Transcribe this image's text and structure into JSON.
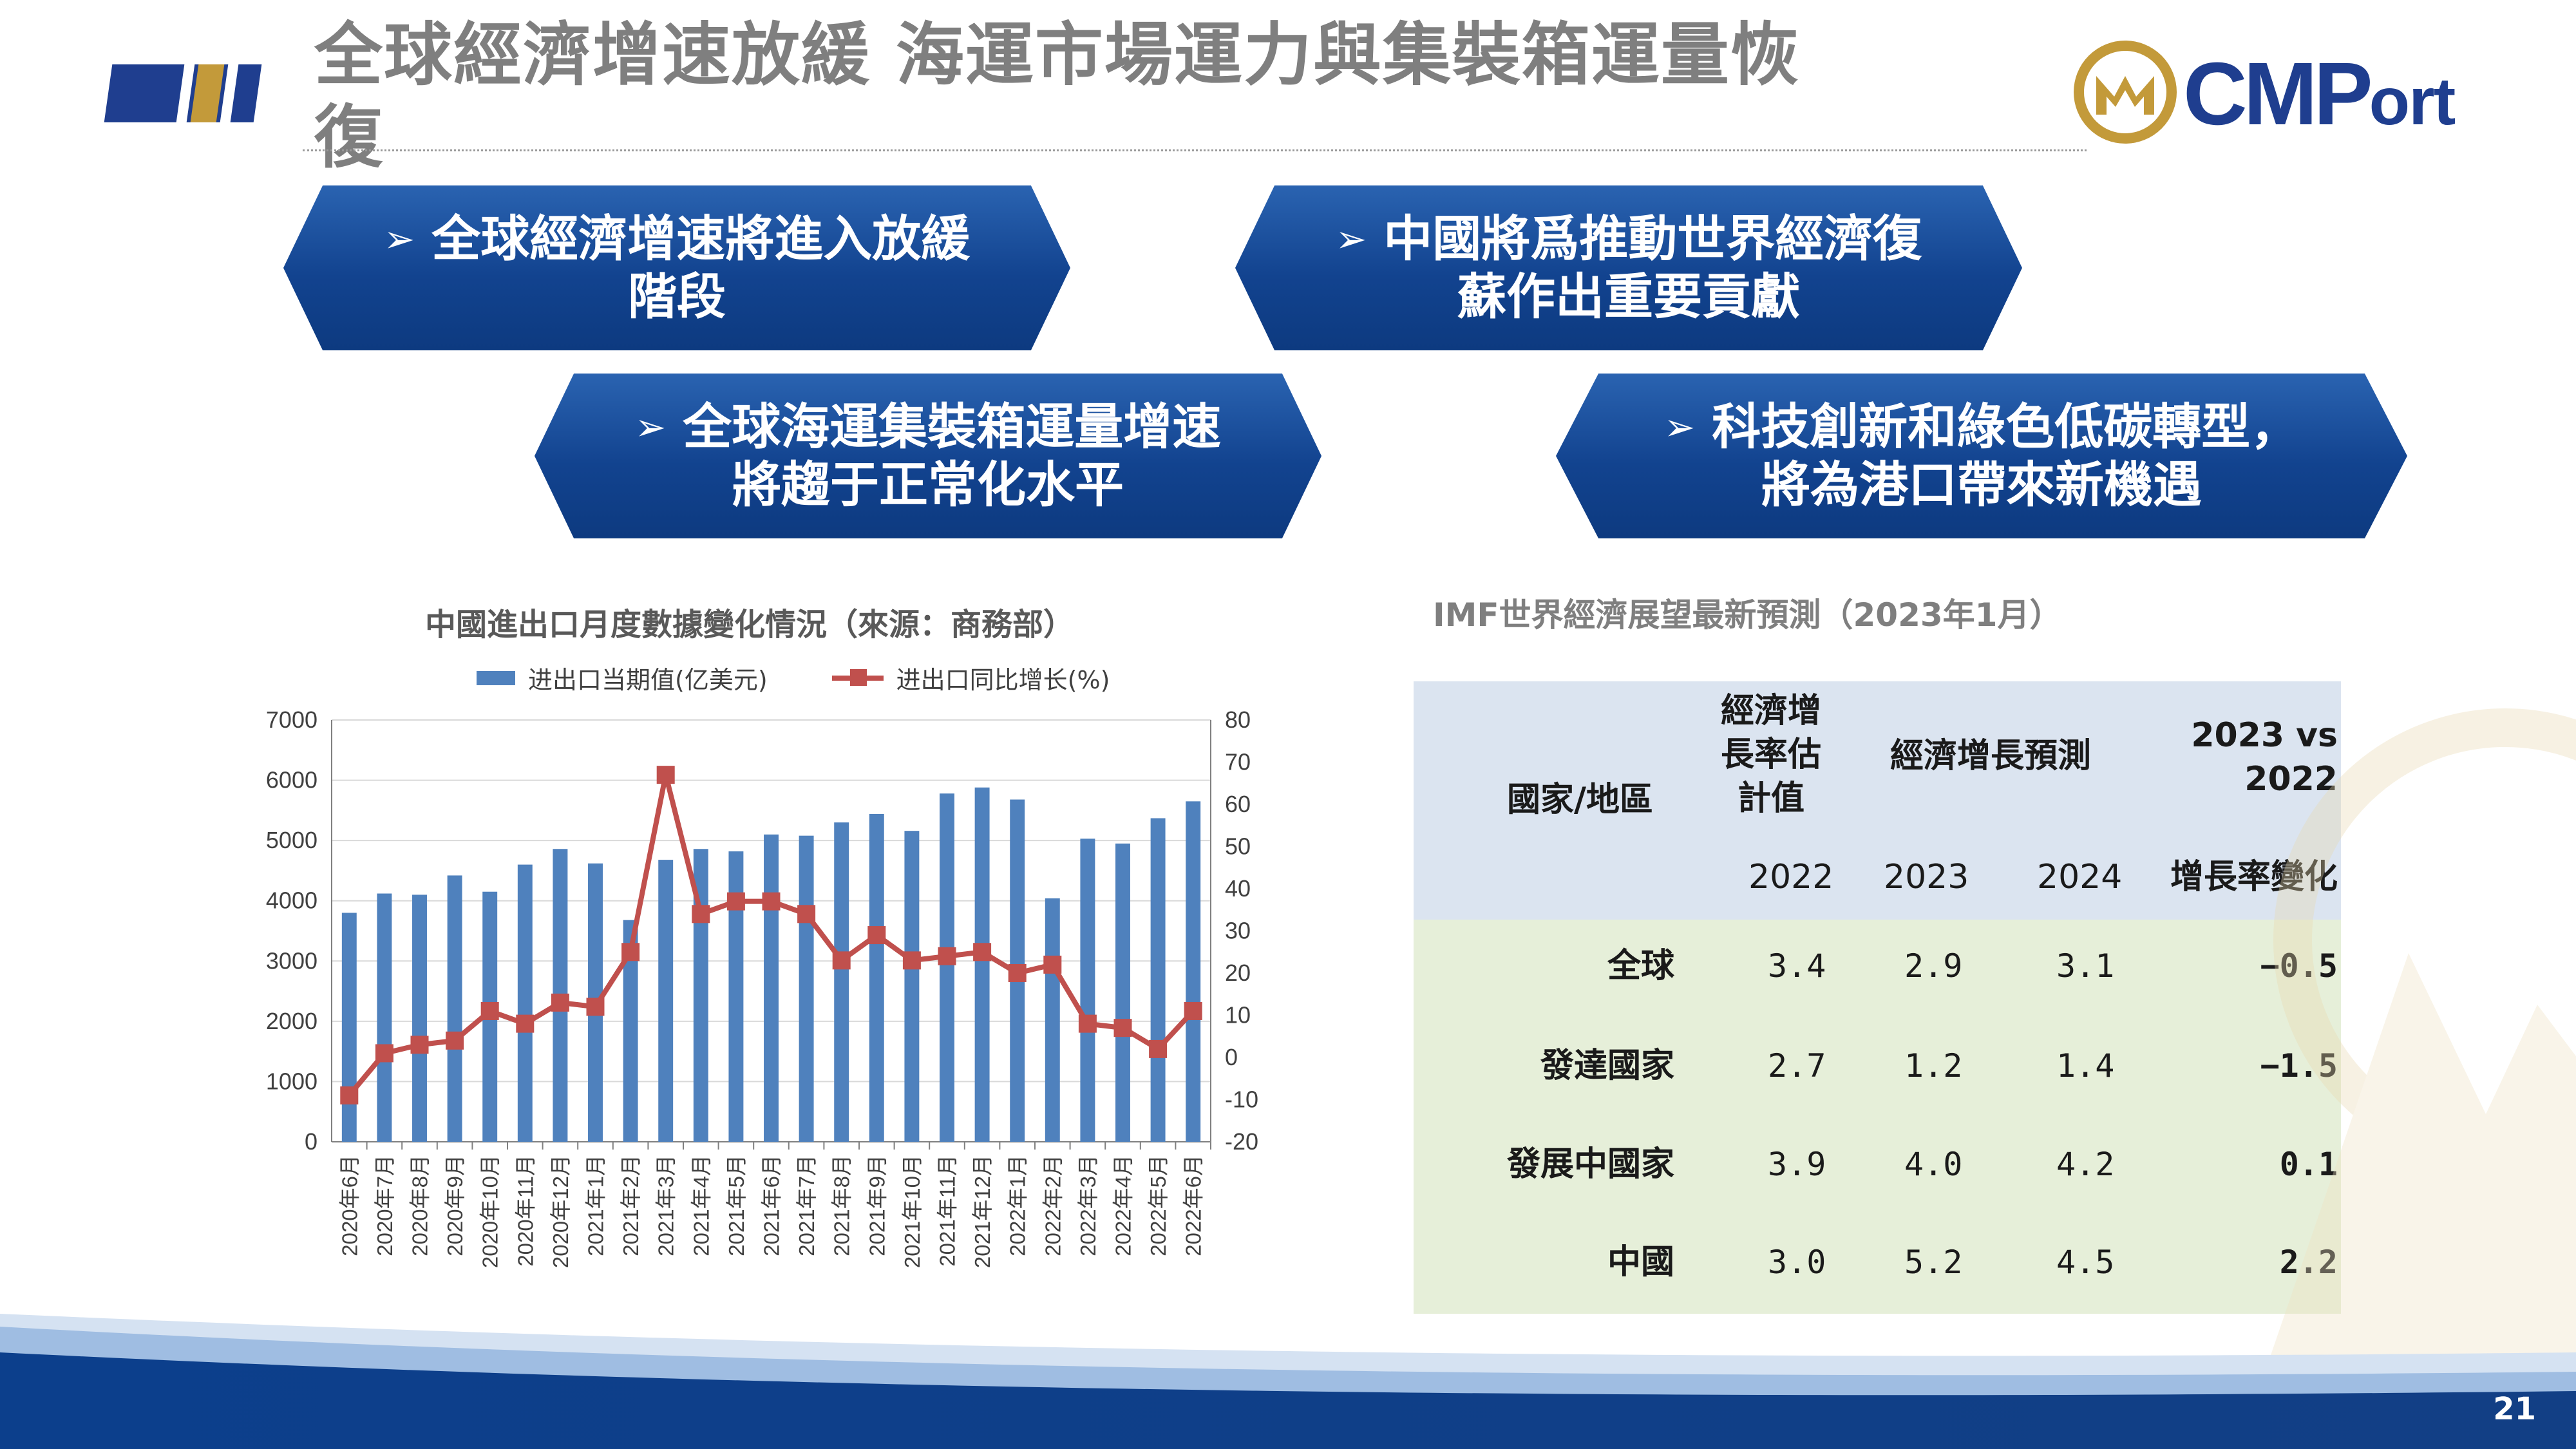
{
  "header": {
    "title_line1": "全球經濟增速放緩 海運市場運力與集裝箱運量恢",
    "title_line2": "復",
    "bar_colors": [
      "#1f3e8f",
      "#1f3e8f",
      "#c39a3a",
      "#1f3e8f"
    ]
  },
  "logo": {
    "text_main": "CMP",
    "text_small": "ort",
    "icon": "cmport-logo-icon",
    "color": "#1f3e8f",
    "gold": "#c39a3a"
  },
  "banners": [
    {
      "line1": "全球經濟增速將進入放緩",
      "line2": "階段",
      "icon": "arrow-bullet-icon"
    },
    {
      "line1": "中國將爲推動世界經濟復",
      "line2": "蘇作出重要貢獻",
      "icon": "arrow-bullet-icon"
    },
    {
      "line1": "全球海運集裝箱運量增速",
      "line2": "將趨于正常化水平",
      "icon": "arrow-bullet-icon"
    },
    {
      "line1": "科技創新和綠色低碳轉型，",
      "line2": "將為港口帶來新機遇",
      "icon": "arrow-bullet-icon"
    }
  ],
  "bullet_glyph": "➢",
  "chart_data": {
    "type": "bar",
    "title": "中國進出口月度數據變化情況（來源：商務部）",
    "categories": [
      "2020年6月",
      "2020年7月",
      "2020年8月",
      "2020年9月",
      "2020年10月",
      "2020年11月",
      "2020年12月",
      "2021年1月",
      "2021年2月",
      "2021年3月",
      "2021年4月",
      "2021年5月",
      "2021年6月",
      "2021年7月",
      "2021年8月",
      "2021年9月",
      "2021年10月",
      "2021年11月",
      "2021年12月",
      "2022年1月",
      "2022年2月",
      "2022年3月",
      "2022年4月",
      "2022年5月",
      "2022年6月"
    ],
    "series": [
      {
        "name": "进出口当期值(亿美元)",
        "type": "bar",
        "axis": "left",
        "color": "#4f81bd",
        "values": [
          3800,
          4120,
          4100,
          4420,
          4150,
          4600,
          4860,
          4620,
          3680,
          4680,
          4860,
          4820,
          5100,
          5080,
          5300,
          5440,
          5160,
          5780,
          5880,
          5680,
          4040,
          5030,
          4950,
          5370,
          5650
        ]
      },
      {
        "name": "进出口同比增长(%)",
        "type": "line",
        "axis": "right",
        "color": "#c0504d",
        "values": [
          -9,
          1,
          3,
          4,
          11,
          8,
          13,
          12,
          25,
          67,
          34,
          37,
          37,
          34,
          23,
          29,
          23,
          24,
          25,
          20,
          22,
          8,
          7,
          2,
          11
        ]
      }
    ],
    "y_left": {
      "min": 0,
      "max": 7000,
      "ticks": [
        "7000",
        "6000",
        "5000",
        "4000",
        "3000",
        "2000",
        "1000",
        "0"
      ]
    },
    "y_right": {
      "min": -20,
      "max": 80,
      "ticks": [
        "80",
        "70",
        "60",
        "50",
        "40",
        "30",
        "20",
        "10",
        "0",
        "-10",
        "-20"
      ]
    },
    "grid": true,
    "legend": "top"
  },
  "table": {
    "title": "IMF世界經濟展望最新預測（2023年1月）",
    "header": {
      "region": "國家/地區",
      "estimate_l1": "經濟增",
      "estimate_l2": "長率估",
      "estimate_l3": "計值",
      "forecast": "經濟增長預測",
      "compare_l1": "2023 vs",
      "compare_l2": "2022",
      "year_2022": "2022",
      "year_2023": "2023",
      "year_2024": "2024",
      "change": "增長率變化"
    },
    "rows": [
      {
        "region": "全球",
        "y2022": "3.4",
        "y2023": "2.9",
        "y2024": "3.1",
        "change": "−0.5"
      },
      {
        "region": "發達國家",
        "y2022": "2.7",
        "y2023": "1.2",
        "y2024": "1.4",
        "change": "−1.5"
      },
      {
        "region": "發展中國家",
        "y2022": "3.9",
        "y2023": "4.0",
        "y2024": "4.2",
        "change": "0.1"
      },
      {
        "region": "中國",
        "y2022": "3.0",
        "y2023": "5.2",
        "y2024": "4.5",
        "change": "2.2"
      }
    ]
  },
  "footer": {
    "page_number": "21"
  }
}
